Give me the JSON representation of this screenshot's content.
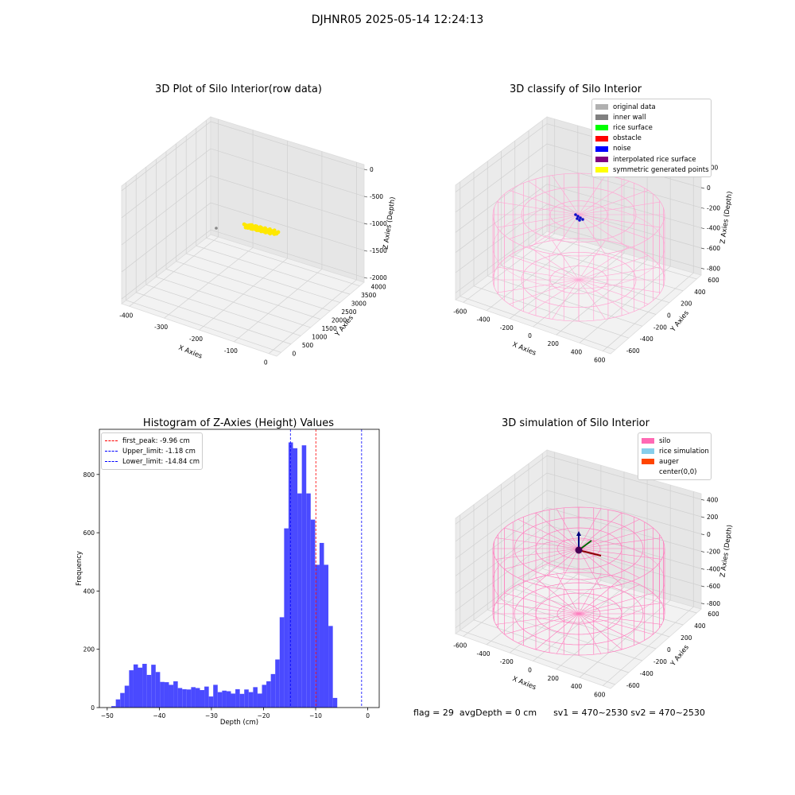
{
  "suptitle": "DJHNR05 2025-05-14 12:24:13",
  "panels": {
    "raw": {
      "title": "3D Plot of Silo Interior(row data)",
      "xlabel": "X Axies",
      "ylabel": "Y Axies",
      "zlabel": "Z Axies (Depth)",
      "xticks": [
        "-400",
        "-300",
        "-200",
        "-100",
        "0"
      ],
      "yticks": [
        "0",
        "500",
        "1000",
        "1500",
        "2000",
        "2500",
        "3000",
        "3500",
        "4000"
      ],
      "zticks": [
        "0",
        "-500",
        "-1000",
        "-1500",
        "-2000"
      ],
      "point_color": "#ffe800"
    },
    "classify": {
      "title": "3D classify of Silo Interior",
      "xlabel": "X Axies",
      "ylabel": "Y Axies",
      "zlabel": "Z Axies (Depth)",
      "xticks": [
        "-600",
        "-400",
        "-200",
        "0",
        "200",
        "400",
        "600"
      ],
      "yticks": [
        "-600",
        "-400",
        "-200",
        "0",
        "200",
        "400",
        "600"
      ],
      "zticks": [
        "200",
        "0",
        "-200",
        "-400",
        "-600",
        "-800"
      ],
      "legend": [
        {
          "label": "original data",
          "color": "#b0b0b0"
        },
        {
          "label": "inner wall",
          "color": "#808080"
        },
        {
          "label": "rice surface",
          "color": "#00ff00"
        },
        {
          "label": "obstacle",
          "color": "#ff0000"
        },
        {
          "label": "noise",
          "color": "#0000ff"
        },
        {
          "label": "interpolated rice surface",
          "color": "#800080"
        },
        {
          "label": "symmetric generated points",
          "color": "#ffff00"
        }
      ],
      "wire_color": "#ffa6d3"
    },
    "simulation": {
      "title": "3D simulation of Silo Interior",
      "xlabel": "X Axies",
      "ylabel": "Y Axies",
      "zlabel": "Z Axies (Depth)",
      "xticks": [
        "-600",
        "-400",
        "-200",
        "0",
        "200",
        "400",
        "600"
      ],
      "yticks": [
        "-600",
        "-400",
        "-200",
        "0",
        "200",
        "400",
        "600"
      ],
      "zticks": [
        "400",
        "200",
        "0",
        "-200",
        "-400",
        "-600",
        "-800"
      ],
      "legend": [
        {
          "label": "silo",
          "color": "#ff69b4"
        },
        {
          "label": "rice simulation",
          "color": "#87ceeb"
        },
        {
          "label": "auger",
          "color": "#ff4500"
        },
        {
          "label": "center(0,0)",
          "color": "#ffffff"
        }
      ],
      "wire_color": "#ff7fbf"
    }
  },
  "footer": {
    "flag": "flag = 29",
    "avg": "avgDepth = 0 cm",
    "sv1": "sv1 = 470~2530",
    "sv2": "sv2 = 470~2530"
  },
  "chart_data": {
    "type": "bar",
    "title": "Histogram of Z-Axies (Height) Values",
    "xlabel": "Depth (cm)",
    "ylabel": "Frequency",
    "xlim": [
      -51.5,
      2.2
    ],
    "ylim": [
      0,
      955
    ],
    "xticks": [
      -50,
      -40,
      -30,
      -20,
      -10,
      0
    ],
    "yticks": [
      0,
      200,
      400,
      600,
      800
    ],
    "bar_color": "#4a4aff",
    "bins": {
      "start": -49.2,
      "width": 0.85,
      "values": [
        5,
        28,
        50,
        75,
        128,
        148,
        137,
        150,
        112,
        147,
        122,
        88,
        87,
        78,
        90,
        67,
        63,
        62,
        70,
        67,
        60,
        72,
        38,
        78,
        53,
        58,
        56,
        48,
        63,
        47,
        62,
        53,
        70,
        48,
        78,
        90,
        115,
        165,
        310,
        615,
        910,
        890,
        735,
        900,
        735,
        645,
        490,
        565,
        490,
        280,
        33
      ]
    },
    "vlines": [
      {
        "label": "first_peak: -9.96 cm",
        "x": -9.96,
        "color": "#ff0000"
      },
      {
        "label": "Upper_limit: -1.18 cm",
        "x": -1.18,
        "color": "#0000ff"
      },
      {
        "label": "Lower_limit: -14.84 cm",
        "x": -14.84,
        "color": "#0000ff"
      }
    ]
  }
}
